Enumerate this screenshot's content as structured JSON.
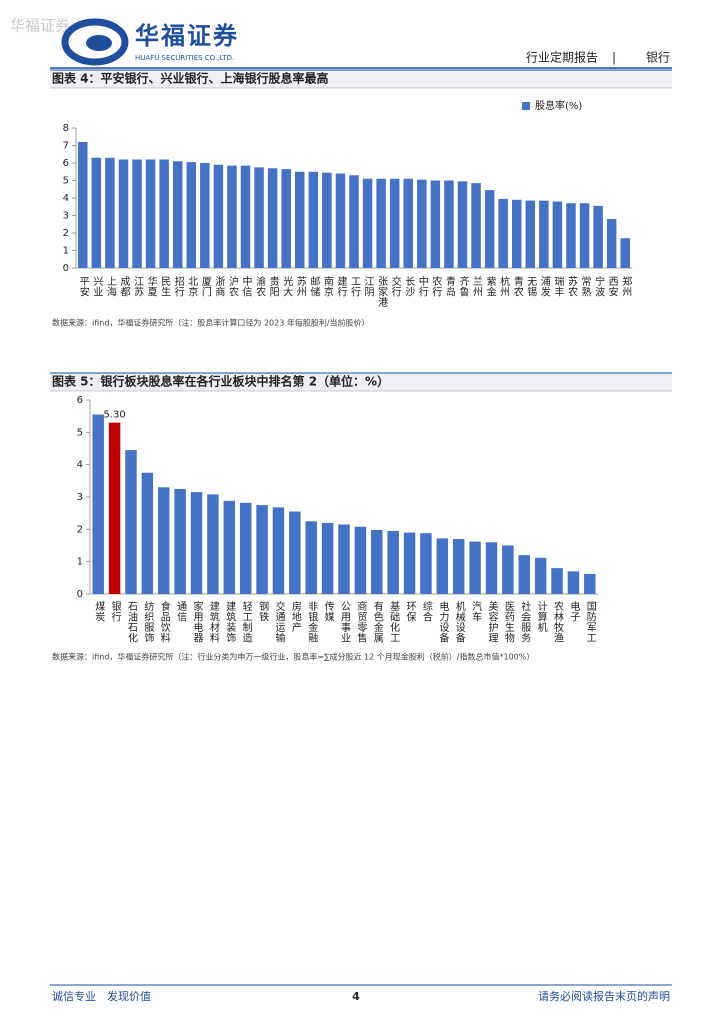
{
  "watermark": "华福证券",
  "header": {
    "logo_name": "华福证券",
    "logo_en": "HUAFU SECURITIES CO.,LTD.",
    "report_type": "行业定期报告",
    "sector": "银行"
  },
  "chart_data": [
    {
      "type": "bar",
      "title": "图表 4：平安银行、兴业银行、上海银行股息率最高",
      "categories": [
        "平安",
        "兴业",
        "上海",
        "成都",
        "江苏",
        "华夏",
        "民生",
        "招行",
        "北京",
        "厦门",
        "浙商",
        "沪农",
        "中信",
        "渝农",
        "贵阳",
        "光大",
        "苏州",
        "邮储",
        "南京",
        "建行",
        "工行",
        "江阴",
        "张家港",
        "交行",
        "长沙",
        "中行",
        "农行",
        "青岛",
        "齐鲁",
        "兰州",
        "紫金",
        "杭州",
        "青农",
        "无锡",
        "浦发",
        "瑞丰",
        "苏农",
        "常熟",
        "宁波",
        "西安",
        "郑州"
      ],
      "series": [
        {
          "name": "股息率(%)",
          "color": "#4472c4",
          "values": [
            7.2,
            6.3,
            6.3,
            6.2,
            6.2,
            6.2,
            6.2,
            6.1,
            6.05,
            6.0,
            5.9,
            5.85,
            5.85,
            5.75,
            5.7,
            5.65,
            5.5,
            5.5,
            5.45,
            5.4,
            5.3,
            5.1,
            5.1,
            5.1,
            5.1,
            5.05,
            5.0,
            5.0,
            4.95,
            4.85,
            4.45,
            3.95,
            3.9,
            3.85,
            3.85,
            3.8,
            3.7,
            3.7,
            3.55,
            2.8,
            1.7
          ]
        }
      ],
      "ylim": [
        0,
        8
      ],
      "yticks": [
        0,
        1,
        2,
        3,
        4,
        5,
        6,
        7,
        8
      ],
      "legend": "upper right",
      "source": "数据来源：ifind，华福证券研究所（注：股息率计算口径为 2023 年每股股利/当前股价）"
    },
    {
      "type": "bar",
      "title": "图表 5：银行板块股息率在各行业板块中排名第 2（单位：%）",
      "categories": [
        "煤炭",
        "银行",
        "石油石化",
        "纺织服饰",
        "食品饮料",
        "通信",
        "家用电器",
        "建筑材料",
        "建筑装饰",
        "轻工制造",
        "钢铁",
        "交通运输",
        "房地产",
        "非银金融",
        "传媒",
        "公用事业",
        "商贸零售",
        "有色金属",
        "基础化工",
        "环保",
        "综合",
        "电力设备",
        "机械设备",
        "汽车",
        "美容护理",
        "医药生物",
        "社会服务",
        "计算机",
        "农林牧渔",
        "电子",
        "国防军工"
      ],
      "values": [
        5.55,
        5.3,
        4.45,
        3.75,
        3.3,
        3.25,
        3.15,
        3.08,
        2.88,
        2.82,
        2.75,
        2.68,
        2.55,
        2.25,
        2.2,
        2.15,
        2.08,
        1.98,
        1.95,
        1.9,
        1.88,
        1.72,
        1.7,
        1.62,
        1.6,
        1.5,
        1.2,
        1.12,
        0.8,
        0.7,
        0.62
      ],
      "value_labels": [
        null,
        "5.30",
        null,
        null,
        null,
        null,
        null,
        null,
        null,
        null,
        null,
        null,
        null,
        null,
        null,
        null,
        null,
        null,
        null,
        null,
        null,
        null,
        null,
        null,
        null,
        null,
        null,
        null,
        null,
        null,
        null
      ],
      "colors": [
        "#4472c4",
        "#c00000",
        "#4472c4",
        "#4472c4",
        "#4472c4",
        "#4472c4",
        "#4472c4",
        "#4472c4",
        "#4472c4",
        "#4472c4",
        "#4472c4",
        "#4472c4",
        "#4472c4",
        "#4472c4",
        "#4472c4",
        "#4472c4",
        "#4472c4",
        "#4472c4",
        "#4472c4",
        "#4472c4",
        "#4472c4",
        "#4472c4",
        "#4472c4",
        "#4472c4",
        "#4472c4",
        "#4472c4",
        "#4472c4",
        "#4472c4",
        "#4472c4",
        "#4472c4",
        "#4472c4"
      ],
      "ylim": [
        0,
        6
      ],
      "yticks": [
        0,
        1,
        2,
        3,
        4,
        5,
        6
      ],
      "source": "数据来源：ifind，华福证券研究所（注：行业分类为申万一级行业，股息率=∑成分股近 12 个月现金股利（税前）/指数总市值*100%）"
    }
  ],
  "footer": {
    "left": "诚信专业　发现价值",
    "page": "4",
    "right": "请务必阅读报告末页的声明"
  }
}
